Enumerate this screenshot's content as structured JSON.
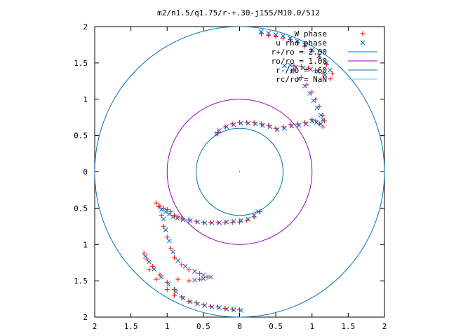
{
  "chart_data": {
    "type": "scatter",
    "title": "m2/n1.5/q1.75/r-+.30-j155/M10.0/512",
    "xlim": [
      -2,
      2
    ],
    "ylim": [
      -2,
      2
    ],
    "x_ticks": [
      -2,
      -1.5,
      -1,
      -0.5,
      0,
      0.5,
      1,
      1.5,
      2
    ],
    "x_tick_labels": [
      "2",
      "1.5",
      "1",
      "0.5",
      "0",
      "0.5",
      "1",
      "1.5",
      "2"
    ],
    "y_ticks": [
      2,
      1.5,
      1,
      0.5,
      0,
      -0.5,
      -1,
      -1.5,
      -2
    ],
    "y_tick_labels": [
      "2",
      "1.5",
      "1",
      "0.5",
      "0",
      "0.5",
      "1",
      "1.5",
      "2"
    ],
    "grid": false,
    "legend_position": "top-right",
    "colors": {
      "w_phase": "#ff0000",
      "rho_phase": "#0066cc",
      "circle_outer": "#0073bf",
      "circle_mid": "#9900bb",
      "circle_inner": "#0077aa",
      "rc": "#55ccee"
    },
    "series": [
      {
        "name": "W phase",
        "marker": "plus",
        "points": [
          [
            0.3,
            1.9
          ],
          [
            0.4,
            1.88
          ],
          [
            0.5,
            1.86
          ],
          [
            0.6,
            1.84
          ],
          [
            0.7,
            1.82
          ],
          [
            0.8,
            1.78
          ],
          [
            0.9,
            1.73
          ],
          [
            1.0,
            1.66
          ],
          [
            1.1,
            1.58
          ],
          [
            1.2,
            1.48
          ],
          [
            1.28,
            1.35
          ],
          [
            1.25,
            1.28
          ],
          [
            1.15,
            1.35
          ],
          [
            1.05,
            1.4
          ],
          [
            0.95,
            1.43
          ],
          [
            0.85,
            1.45
          ],
          [
            0.75,
            1.46
          ],
          [
            0.75,
            1.4
          ],
          [
            0.85,
            1.3
          ],
          [
            0.93,
            1.2
          ],
          [
            1.0,
            1.1
          ],
          [
            1.05,
            1.0
          ],
          [
            1.1,
            0.9
          ],
          [
            1.15,
            0.78
          ],
          [
            1.17,
            0.7
          ],
          [
            1.15,
            0.62
          ],
          [
            1.1,
            0.66
          ],
          [
            1.05,
            0.7
          ],
          [
            1.0,
            0.72
          ],
          [
            0.9,
            0.68
          ],
          [
            0.8,
            0.66
          ],
          [
            0.7,
            0.65
          ],
          [
            0.6,
            0.62
          ],
          [
            0.5,
            0.6
          ],
          [
            0.4,
            0.64
          ],
          [
            0.3,
            0.66
          ],
          [
            0.2,
            0.68
          ],
          [
            0.1,
            0.68
          ],
          [
            0.0,
            0.68
          ],
          [
            -0.1,
            0.66
          ],
          [
            -0.2,
            0.62
          ],
          [
            -0.3,
            0.54
          ],
          [
            -1.15,
            -0.43
          ],
          [
            -1.1,
            -0.47
          ],
          [
            -1.05,
            -0.5
          ],
          [
            -1.0,
            -0.52
          ],
          [
            -0.95,
            -0.55
          ],
          [
            -0.9,
            -0.6
          ],
          [
            -0.85,
            -0.62
          ],
          [
            -0.8,
            -0.64
          ],
          [
            -0.7,
            -0.66
          ],
          [
            -0.6,
            -0.68
          ],
          [
            -0.5,
            -0.7
          ],
          [
            -0.4,
            -0.7
          ],
          [
            -0.3,
            -0.7
          ],
          [
            -0.2,
            -0.7
          ],
          [
            -0.1,
            -0.7
          ],
          [
            0.0,
            -0.69
          ],
          [
            0.1,
            -0.67
          ],
          [
            0.2,
            -0.62
          ],
          [
            0.28,
            -0.55
          ],
          [
            -1.12,
            -0.48
          ],
          [
            -1.08,
            -0.6
          ],
          [
            -1.05,
            -0.75
          ],
          [
            -1.0,
            -0.9
          ],
          [
            -0.95,
            -1.05
          ],
          [
            -0.9,
            -1.18
          ],
          [
            -0.8,
            -1.28
          ],
          [
            -0.7,
            -1.35
          ],
          [
            -0.55,
            -1.4
          ],
          [
            -0.45,
            -1.45
          ],
          [
            -0.55,
            -1.48
          ],
          [
            -0.7,
            -1.5
          ],
          [
            -0.85,
            -1.48
          ],
          [
            -1.32,
            -1.12
          ],
          [
            -1.28,
            -1.2
          ],
          [
            -1.2,
            -1.3
          ],
          [
            -1.1,
            -1.42
          ],
          [
            -1.0,
            -1.52
          ],
          [
            -0.9,
            -1.62
          ],
          [
            -0.8,
            -1.72
          ],
          [
            -0.7,
            -1.78
          ],
          [
            -0.6,
            -1.8
          ],
          [
            -0.5,
            -1.83
          ],
          [
            -0.4,
            -1.85
          ],
          [
            -0.3,
            -1.86
          ],
          [
            -0.2,
            -1.88
          ],
          [
            -0.1,
            -1.89
          ],
          [
            0.0,
            -1.9
          ],
          [
            -1.25,
            -1.35
          ],
          [
            -1.15,
            -1.48
          ],
          [
            -1.0,
            -1.62
          ],
          [
            -0.9,
            -1.7
          ]
        ]
      },
      {
        "name": "u rho phase",
        "marker": "cross",
        "points": [
          [
            0.3,
            1.93
          ],
          [
            0.4,
            1.91
          ],
          [
            0.5,
            1.89
          ],
          [
            0.6,
            1.87
          ],
          [
            0.7,
            1.84
          ],
          [
            0.8,
            1.8
          ],
          [
            0.9,
            1.75
          ],
          [
            1.0,
            1.68
          ],
          [
            1.1,
            1.6
          ],
          [
            1.2,
            1.5
          ],
          [
            1.25,
            1.4
          ],
          [
            1.18,
            1.33
          ],
          [
            1.08,
            1.38
          ],
          [
            0.98,
            1.41
          ],
          [
            0.88,
            1.43
          ],
          [
            0.78,
            1.44
          ],
          [
            0.7,
            1.47
          ],
          [
            0.62,
            1.46
          ],
          [
            0.72,
            1.38
          ],
          [
            0.82,
            1.28
          ],
          [
            0.9,
            1.18
          ],
          [
            0.97,
            1.08
          ],
          [
            1.02,
            0.98
          ],
          [
            1.07,
            0.88
          ],
          [
            1.12,
            0.78
          ],
          [
            1.15,
            0.72
          ],
          [
            1.12,
            0.66
          ],
          [
            1.06,
            0.68
          ],
          [
            1.0,
            0.7
          ],
          [
            0.92,
            0.66
          ],
          [
            0.82,
            0.64
          ],
          [
            0.72,
            0.63
          ],
          [
            0.62,
            0.6
          ],
          [
            0.52,
            0.58
          ],
          [
            0.42,
            0.62
          ],
          [
            0.32,
            0.64
          ],
          [
            0.22,
            0.66
          ],
          [
            0.12,
            0.67
          ],
          [
            0.02,
            0.67
          ],
          [
            -0.08,
            0.65
          ],
          [
            -0.18,
            0.62
          ],
          [
            -0.28,
            0.57
          ],
          [
            -0.32,
            0.52
          ],
          [
            -1.08,
            -0.52
          ],
          [
            -1.02,
            -0.55
          ],
          [
            -0.97,
            -0.58
          ],
          [
            -0.92,
            -0.62
          ],
          [
            -0.86,
            -0.64
          ],
          [
            -0.78,
            -0.66
          ],
          [
            -0.68,
            -0.67
          ],
          [
            -0.58,
            -0.69
          ],
          [
            -0.48,
            -0.7
          ],
          [
            -0.38,
            -0.7
          ],
          [
            -0.28,
            -0.7
          ],
          [
            -0.18,
            -0.69
          ],
          [
            -0.08,
            -0.68
          ],
          [
            0.02,
            -0.67
          ],
          [
            0.12,
            -0.65
          ],
          [
            0.2,
            -0.6
          ],
          [
            0.26,
            -0.55
          ],
          [
            -1.05,
            -0.65
          ],
          [
            -1.02,
            -0.8
          ],
          [
            -0.97,
            -0.95
          ],
          [
            -0.92,
            -1.1
          ],
          [
            -0.85,
            -1.22
          ],
          [
            -0.75,
            -1.3
          ],
          [
            -0.62,
            -1.37
          ],
          [
            -0.5,
            -1.42
          ],
          [
            -0.4,
            -1.45
          ],
          [
            -0.5,
            -1.47
          ],
          [
            -0.62,
            -1.49
          ],
          [
            -1.3,
            -1.16
          ],
          [
            -1.25,
            -1.24
          ],
          [
            -1.18,
            -1.34
          ],
          [
            -1.08,
            -1.45
          ],
          [
            -0.98,
            -1.55
          ],
          [
            -0.88,
            -1.65
          ],
          [
            -0.78,
            -1.74
          ],
          [
            -0.68,
            -1.79
          ],
          [
            -0.58,
            -1.82
          ],
          [
            -0.48,
            -1.84
          ],
          [
            -0.38,
            -1.86
          ],
          [
            -0.28,
            -1.87
          ],
          [
            -0.18,
            -1.89
          ],
          [
            -0.08,
            -1.9
          ],
          [
            0.02,
            -1.91
          ]
        ]
      },
      {
        "name": "r+/ro = 2.00",
        "circle_radius": 2.0
      },
      {
        "name": "ro/ro = 1.00",
        "circle_radius": 1.0
      },
      {
        "name": "r-/ro = .60",
        "circle_radius": 0.6
      },
      {
        "name": "rc/ro = NaN"
      }
    ]
  }
}
